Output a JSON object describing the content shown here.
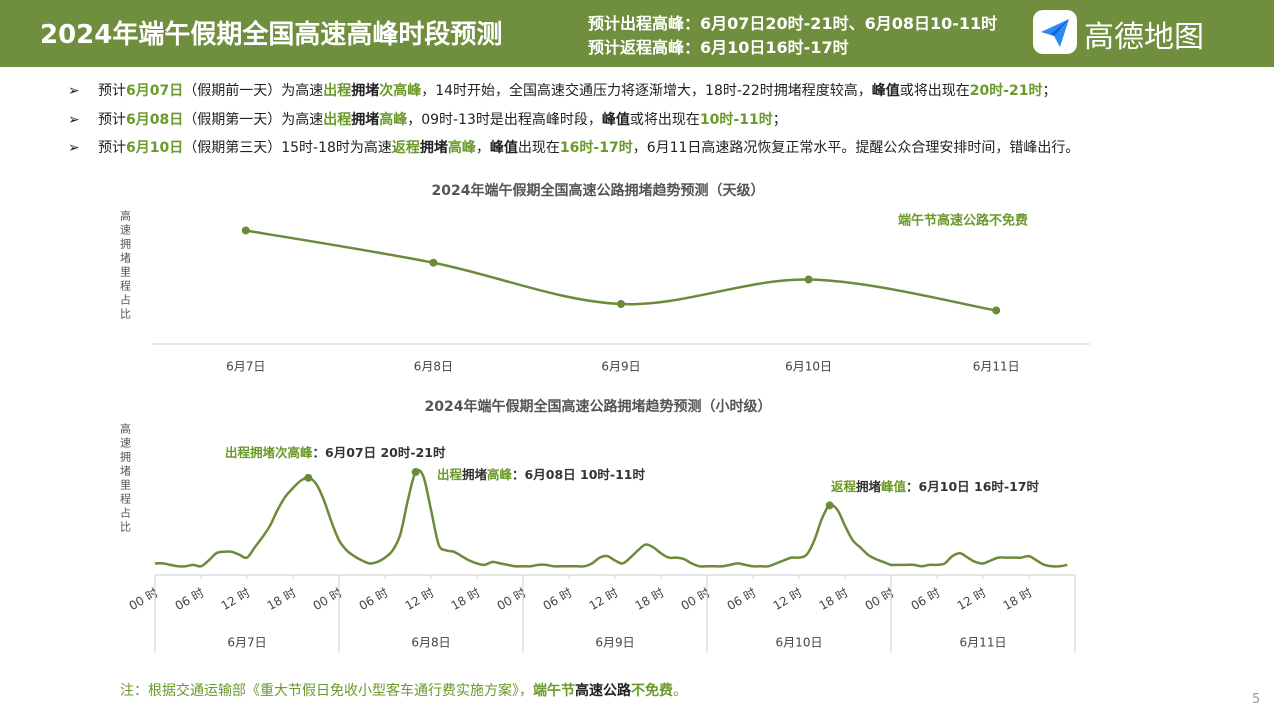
{
  "header": {
    "title": "2024年端午假期全国高速高峰时段预测",
    "lines": [
      "预计出程高峰：6月07日20时-21时、6月08日10-11时",
      "预计返程高峰：6月10日16时-17时"
    ],
    "logo": "高德地图"
  },
  "bullets": [
    [
      [
        "预计",
        "n"
      ],
      [
        "6月07日",
        "g"
      ],
      [
        "（假期前一天）为高速",
        "n"
      ],
      [
        "出程",
        "g"
      ],
      [
        "拥堵",
        "b"
      ],
      [
        "次高峰",
        "g"
      ],
      [
        "，14时开始，全国高速交通压力将逐渐增大，18时-22时拥堵程度较高，",
        "n"
      ],
      [
        "峰值",
        "b"
      ],
      [
        "或将出现在",
        "n"
      ],
      [
        "20时-21时",
        "g"
      ],
      [
        "；",
        "n"
      ]
    ],
    [
      [
        "预计",
        "n"
      ],
      [
        "6月08日",
        "g"
      ],
      [
        "（假期第一天）为高速",
        "n"
      ],
      [
        "出程",
        "g"
      ],
      [
        "拥堵",
        "b"
      ],
      [
        "高峰",
        "g"
      ],
      [
        "，09时-13时是出程高峰时段，",
        "n"
      ],
      [
        "峰值",
        "b"
      ],
      [
        "或将出现在",
        "n"
      ],
      [
        "10时-11时",
        "g"
      ],
      [
        "；",
        "n"
      ]
    ],
    [
      [
        "预计",
        "n"
      ],
      [
        "6月10日",
        "g"
      ],
      [
        "（假期第三天）15时-18时为高速",
        "n"
      ],
      [
        "返程",
        "g"
      ],
      [
        "拥堵",
        "b"
      ],
      [
        "高峰",
        "g"
      ],
      [
        "，",
        "n"
      ],
      [
        "峰值",
        "b"
      ],
      [
        "出现在",
        "n"
      ],
      [
        "16时-17时",
        "g"
      ],
      [
        "，6月11日高速路况恢复正常水平。提醒公众合理安排时间，错峰出行。",
        "n"
      ]
    ]
  ],
  "chart_data": [
    {
      "type": "line",
      "title": "2024年端午假期全国高速公路拥堵趋势预测（天级）",
      "ylabel": "高速拥堵里程占比",
      "categories": [
        "6月7日",
        "6月8日",
        "6月9日",
        "6月10日",
        "6月11日"
      ],
      "values": [
        88,
        63,
        31,
        50,
        26
      ],
      "color": "#6b8a3a",
      "ylim": [
        0,
        100
      ],
      "annotation": "端午节高速公路不免费"
    },
    {
      "type": "line",
      "title": "2024年端午假期全国高速公路拥堵趋势预测（小时级）",
      "ylabel": "高速拥堵里程占比",
      "x": [
        0,
        1,
        2,
        3,
        4,
        5,
        6,
        7,
        8,
        9,
        10,
        11,
        12,
        13,
        14,
        15,
        16,
        17,
        18,
        19,
        20,
        21,
        22,
        23,
        24,
        25,
        26,
        27,
        28,
        29,
        30,
        31,
        32,
        33,
        34,
        35,
        36,
        37,
        38,
        39,
        40,
        41,
        42,
        43,
        44,
        45,
        46,
        47,
        48,
        49,
        50,
        51,
        52,
        53,
        54,
        55,
        56,
        57,
        58,
        59,
        60,
        61,
        62,
        63,
        64,
        65,
        66,
        67,
        68,
        69,
        70,
        71,
        72,
        73,
        74,
        75,
        76,
        77,
        78,
        79,
        80,
        81,
        82,
        83,
        84,
        85,
        86,
        87,
        88,
        89,
        90,
        91,
        92,
        93,
        94,
        95,
        96,
        97,
        98,
        99,
        100,
        101,
        102,
        103,
        104,
        105,
        106,
        107,
        108,
        109,
        110,
        111,
        112,
        113,
        114,
        115,
        116,
        117,
        118,
        119
      ],
      "values": [
        8,
        8,
        7,
        6,
        6,
        7,
        6,
        10,
        15,
        16,
        16,
        14,
        12,
        19,
        26,
        34,
        45,
        54,
        60,
        65,
        67,
        63,
        52,
        37,
        24,
        17,
        13,
        10,
        8,
        9,
        12,
        17,
        28,
        52,
        71,
        68,
        45,
        21,
        17,
        16,
        13,
        10,
        8,
        7,
        9,
        8,
        7,
        6,
        6,
        6,
        7,
        7,
        6,
        6,
        6,
        6,
        6,
        8,
        12,
        13,
        10,
        8,
        12,
        17,
        21,
        19,
        15,
        12,
        12,
        11,
        8,
        6,
        6,
        6,
        6,
        7,
        8,
        7,
        6,
        6,
        6,
        8,
        10,
        12,
        12,
        14,
        24,
        39,
        48,
        45,
        34,
        24,
        19,
        14,
        11,
        9,
        7,
        7,
        7,
        7,
        6,
        7,
        7,
        8,
        13,
        15,
        12,
        9,
        8,
        10,
        12,
        12,
        12,
        12,
        13,
        10,
        7,
        6,
        6,
        7
      ],
      "color": "#6b8a3a",
      "xlim": [
        0,
        120
      ],
      "ylim": [
        0,
        100
      ],
      "xticks": [
        {
          "value": 0,
          "label": "00 时"
        },
        {
          "value": 6,
          "label": "06 时"
        },
        {
          "value": 12,
          "label": "12 时"
        },
        {
          "value": 18,
          "label": "18 时"
        },
        {
          "value": 24,
          "label": "00 时"
        },
        {
          "value": 30,
          "label": "06 时"
        },
        {
          "value": 36,
          "label": "12 时"
        },
        {
          "value": 42,
          "label": "18 时"
        },
        {
          "value": 48,
          "label": "00 时"
        },
        {
          "value": 54,
          "label": "06 时"
        },
        {
          "value": 60,
          "label": "12 时"
        },
        {
          "value": 66,
          "label": "18 时"
        },
        {
          "value": 72,
          "label": "00 时"
        },
        {
          "value": 78,
          "label": "06 时"
        },
        {
          "value": 84,
          "label": "12 时"
        },
        {
          "value": 90,
          "label": "18 时"
        },
        {
          "value": 96,
          "label": "00 时"
        },
        {
          "value": 102,
          "label": "06 时"
        },
        {
          "value": 108,
          "label": "12 时"
        },
        {
          "value": 114,
          "label": "18 时"
        }
      ],
      "days": [
        "6月7日",
        "6月8日",
        "6月9日",
        "6月10日",
        "6月11日"
      ],
      "annotations": [
        [
          [
            "出程拥堵次高峰",
            "g"
          ],
          [
            "：6月07日 20时-21时",
            "b"
          ]
        ],
        [
          [
            "出程",
            "g"
          ],
          [
            "拥堵",
            "b"
          ],
          [
            "高峰",
            "g"
          ],
          [
            "：6月08日 10时-11时",
            "b"
          ]
        ],
        [
          [
            "返程",
            "g"
          ],
          [
            "拥堵",
            "b"
          ],
          [
            "峰值",
            "g"
          ],
          [
            "：6月10日 16时-17时",
            "b"
          ]
        ]
      ]
    }
  ],
  "note": [
    [
      "注：根据交通运输部《重大节假日免收小型客车通行费实施方案》，",
      "g"
    ],
    [
      "端午节",
      "gb"
    ],
    [
      "高速公路",
      "b"
    ],
    [
      "不免费",
      "gb"
    ],
    [
      "。",
      "g"
    ]
  ],
  "page": "5"
}
